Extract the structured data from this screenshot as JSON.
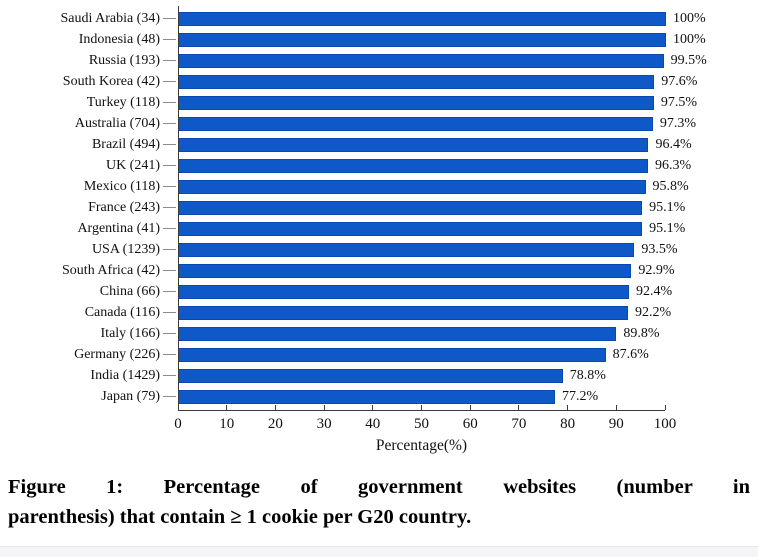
{
  "colors": {
    "bar_fill": "#0f58c8",
    "bar_border": "#0a4ab0",
    "axis": "#3a3a3a",
    "ytick": "#8c8c8c"
  },
  "chart_data": {
    "type": "bar",
    "orientation": "horizontal",
    "title": "",
    "categories": [
      "Saudi Arabia (34)",
      "Indonesia (48)",
      "Russia (193)",
      "South Korea (42)",
      "Turkey (118)",
      "Australia (704)",
      "Brazil (494)",
      "UK (241)",
      "Mexico (118)",
      "France (243)",
      "Argentina (41)",
      "USA (1239)",
      "South Africa (42)",
      "China (66)",
      "Canada (116)",
      "Italy (166)",
      "Germany (226)",
      "India (1429)",
      "Japan (79)"
    ],
    "values": [
      100,
      100,
      99.5,
      97.6,
      97.5,
      97.3,
      96.4,
      96.3,
      95.8,
      95.1,
      95.1,
      93.5,
      92.9,
      92.4,
      92.2,
      89.8,
      87.6,
      78.8,
      77.2
    ],
    "value_labels": [
      "100%",
      "100%",
      "99.5%",
      "97.6%",
      "97.5%",
      "97.3%",
      "96.4%",
      "96.3%",
      "95.8%",
      "95.1%",
      "95.1%",
      "93.5%",
      "92.9%",
      "92.4%",
      "92.2%",
      "89.8%",
      "87.6%",
      "78.8%",
      "77.2%"
    ],
    "xlabel": "Percentage(%)",
    "ylabel": "",
    "xlim": [
      0,
      100
    ],
    "xticks": [
      0,
      10,
      20,
      30,
      40,
      50,
      60,
      70,
      80,
      90,
      100
    ],
    "grid": false,
    "legend": "none"
  },
  "caption": {
    "line1": "Figure 1: Percentage of government websites (number in",
    "line2": "parenthesis) that contain ≥ 1 cookie per G20 country."
  }
}
